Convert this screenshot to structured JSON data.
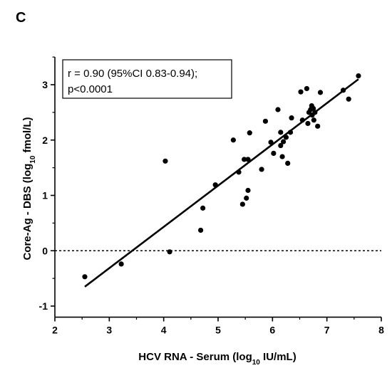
{
  "panel_label": "C",
  "chart_data": {
    "type": "scatter",
    "title": "",
    "xlabel": "HCV RNA - Serum (log",
    "xlabel_sub": "10",
    "xlabel_suffix": " IU/mL)",
    "ylabel": "Core-Ag - DBS (log",
    "ylabel_sub": "10",
    "ylabel_suffix": " fmol/L)",
    "xlim": [
      2,
      8
    ],
    "ylim": [
      -1.2,
      3.5
    ],
    "xticks": [
      2,
      3,
      4,
      5,
      6,
      7,
      8
    ],
    "xtick_labels": [
      "2",
      "3",
      "4",
      "5",
      "6",
      "7",
      "8"
    ],
    "yticks": [
      -1,
      0,
      1,
      2,
      3
    ],
    "ytick_labels": [
      "-1",
      "0",
      "1",
      "2",
      "3"
    ],
    "grid": false,
    "reference_line": {
      "y": 0,
      "style": "dotted"
    },
    "regression_line": {
      "x": [
        2.55,
        7.58
      ],
      "y": [
        -0.65,
        3.1
      ]
    },
    "annotation": {
      "line1": "r = 0.90 (95%CI 0.83-0.94);",
      "line2": "p<0.0001"
    },
    "points": [
      {
        "x": 2.55,
        "y": -0.47
      },
      {
        "x": 3.22,
        "y": -0.24
      },
      {
        "x": 4.03,
        "y": 1.62
      },
      {
        "x": 4.11,
        "y": -0.02
      },
      {
        "x": 4.68,
        "y": 0.37
      },
      {
        "x": 4.72,
        "y": 0.77
      },
      {
        "x": 4.95,
        "y": 1.19
      },
      {
        "x": 5.28,
        "y": 2.0
      },
      {
        "x": 5.38,
        "y": 1.42
      },
      {
        "x": 5.48,
        "y": 1.65
      },
      {
        "x": 5.45,
        "y": 0.84
      },
      {
        "x": 5.52,
        "y": 0.95
      },
      {
        "x": 5.55,
        "y": 1.09
      },
      {
        "x": 5.55,
        "y": 1.65
      },
      {
        "x": 5.58,
        "y": 2.13
      },
      {
        "x": 5.8,
        "y": 1.47
      },
      {
        "x": 5.87,
        "y": 2.34
      },
      {
        "x": 5.97,
        "y": 1.96
      },
      {
        "x": 6.02,
        "y": 1.76
      },
      {
        "x": 6.1,
        "y": 2.55
      },
      {
        "x": 6.15,
        "y": 1.9
      },
      {
        "x": 6.15,
        "y": 2.14
      },
      {
        "x": 6.18,
        "y": 1.7
      },
      {
        "x": 6.2,
        "y": 1.97
      },
      {
        "x": 6.25,
        "y": 2.05
      },
      {
        "x": 6.28,
        "y": 1.58
      },
      {
        "x": 6.33,
        "y": 2.14
      },
      {
        "x": 6.35,
        "y": 2.4
      },
      {
        "x": 6.52,
        "y": 2.87
      },
      {
        "x": 6.55,
        "y": 2.36
      },
      {
        "x": 6.63,
        "y": 2.93
      },
      {
        "x": 6.65,
        "y": 2.3
      },
      {
        "x": 6.67,
        "y": 2.5
      },
      {
        "x": 6.7,
        "y": 2.55
      },
      {
        "x": 6.72,
        "y": 2.62
      },
      {
        "x": 6.73,
        "y": 2.45
      },
      {
        "x": 6.75,
        "y": 2.57
      },
      {
        "x": 6.76,
        "y": 2.36
      },
      {
        "x": 6.78,
        "y": 2.5
      },
      {
        "x": 6.83,
        "y": 2.25
      },
      {
        "x": 6.88,
        "y": 2.86
      },
      {
        "x": 7.3,
        "y": 2.9
      },
      {
        "x": 7.4,
        "y": 2.74
      },
      {
        "x": 7.58,
        "y": 3.16
      }
    ]
  }
}
